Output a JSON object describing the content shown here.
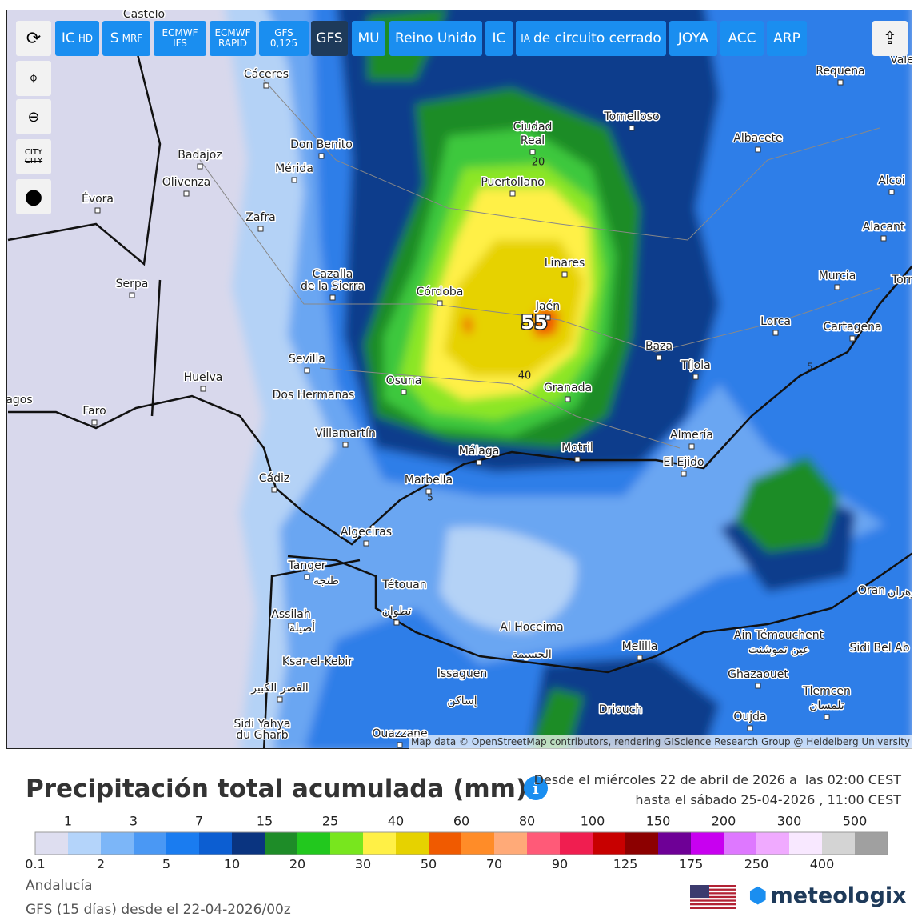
{
  "toolbar": {
    "models": [
      {
        "main": "IC",
        "sub": "HD"
      },
      {
        "main": "S",
        "sub": "MRF"
      },
      {
        "main": "ECMWF",
        "sub": "IFS"
      },
      {
        "main": "ECMWF",
        "sub": "RAPID"
      },
      {
        "main": "GFS",
        "sub": "0,125"
      },
      {
        "main": "GFS"
      },
      {
        "main": "MU"
      },
      {
        "main": "Reino Unido"
      },
      {
        "main": "IC"
      },
      {
        "main": "de circuito cerrado",
        "pre": "IA"
      },
      {
        "main": "JOYA"
      },
      {
        "main": "ACC"
      },
      {
        "main": "ARP"
      }
    ],
    "active": 5,
    "city_toggle": [
      "CITY",
      "CITY"
    ]
  },
  "map": {
    "cities": [
      "Castelo",
      "Cáceres",
      "Don Benito",
      "Badajoz",
      "Mérida",
      "Olivenza",
      "Évora",
      "Zafra",
      "Serpa",
      "Cazalla",
      "de la Sierra",
      "Sevilla",
      "Huelva",
      "Dos Hermanas",
      "Faro",
      "agos",
      "Villamartín",
      "Cádiz",
      "Algeciras",
      "Tanger",
      "طنجة",
      "Tétouan",
      "تطوان",
      "Assilah",
      "أصيلة",
      "Ksar-el-Kebir",
      "القصر الكبير",
      "Sidi Yahya",
      "du Gharb",
      "Ouazzane",
      "Issaguen",
      "إساكن",
      "Al Hoceima",
      "الحسيمة",
      "Driouch",
      "Melilla",
      "Oujda",
      "Ghazaouet",
      "Ain Témouchent",
      "عين تموشنت",
      "Tlemcen",
      "تلمسان",
      "Sidi Bel Ab",
      "Oran",
      "وهران",
      "Málaga",
      "Marbella",
      "Motril",
      "Granada",
      "Osuna",
      "Córdoba",
      "Jaén",
      "Linares",
      "Puertollano",
      "Ciudad",
      "Real",
      "Tomelloso",
      "Albacete",
      "Requena",
      "Vale",
      "Alcoi",
      "Alacant",
      "Murcia",
      "Lorca",
      "Cartagena",
      "Torr",
      "Baza",
      "Tíjola",
      "Almería",
      "El Ejido"
    ],
    "contours": [
      "20",
      "40",
      "5",
      "5",
      "55"
    ],
    "attribution": "Map data © OpenStreetMap contributors, rendering GIScience Research Group @ Heidelberg University"
  },
  "header": {
    "title": "Precipitación total acumulada (mm)",
    "period_from": "Desde el miércoles 22 de abril de 2026 a  las 02:00 CEST",
    "period_to": "hasta el sábado 25-04-2026 , 11:00 CEST"
  },
  "legend": {
    "upper": [
      1,
      3,
      7,
      15,
      25,
      40,
      60,
      80,
      100,
      150,
      200,
      300,
      500
    ],
    "lower": [
      0.1,
      2,
      5,
      10,
      20,
      30,
      50,
      70,
      90,
      125,
      175,
      250,
      400
    ],
    "colors": [
      "#dedef0",
      "#b4d4fa",
      "#7cb6f8",
      "#4a98f4",
      "#1a7cf0",
      "#0c5ed2",
      "#0a3480",
      "#1e8c28",
      "#22c81e",
      "#78e61e",
      "#fff046",
      "#e6d200",
      "#f05a00",
      "#ff8c28",
      "#ffaa78",
      "#ff5a78",
      "#f01e50",
      "#c80000",
      "#8c0000",
      "#6e0096",
      "#c800f0",
      "#de78ff",
      "#f0aaff",
      "#f8e8ff",
      "#d4d4d4",
      "#a0a0a0"
    ]
  },
  "footer": {
    "region": "Andalucía",
    "run": "GFS (15 días) desde el 22-04-2026/00z",
    "brand": "meteologix"
  }
}
